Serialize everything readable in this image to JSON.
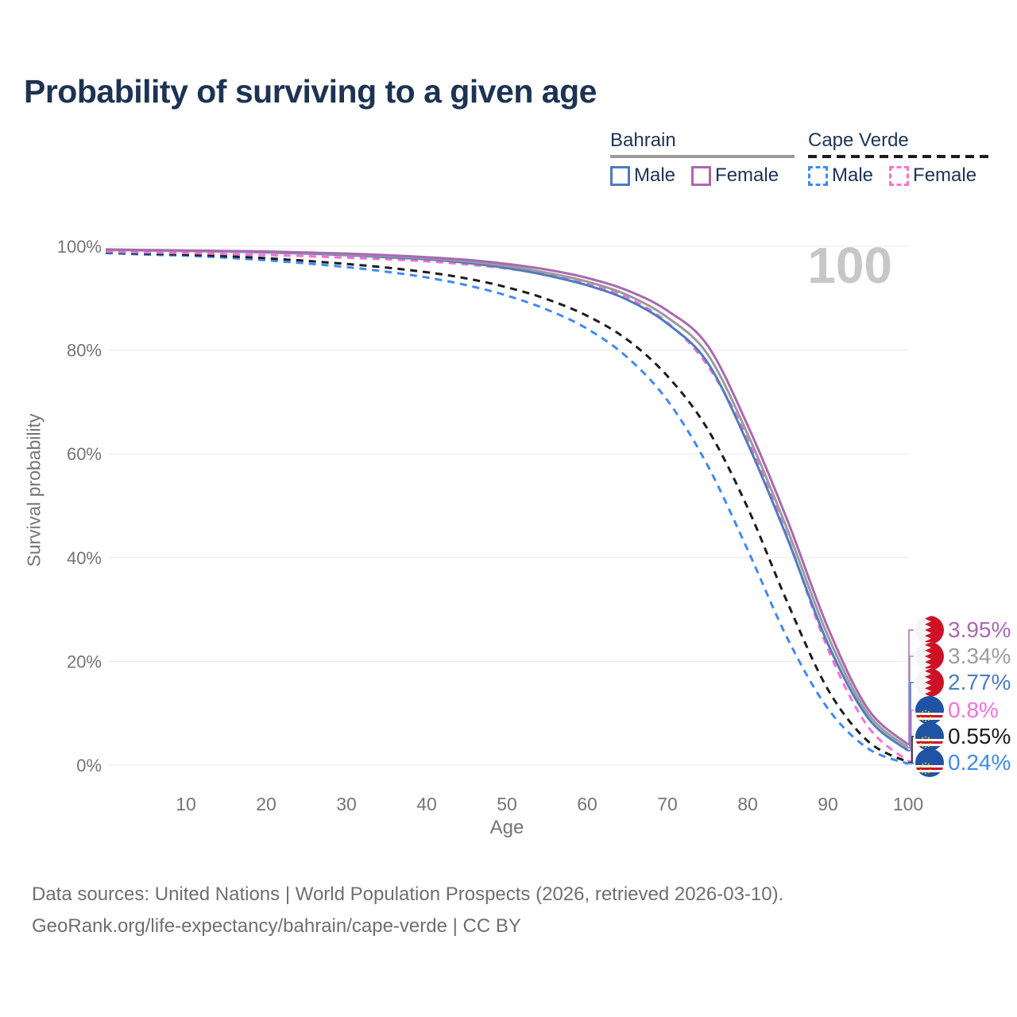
{
  "title": "Probability of surviving to a given age",
  "age_indicator": "100",
  "legend": {
    "groups": [
      {
        "title": "Bahrain",
        "line_style": "solid",
        "line_color": "#9b9b9b",
        "items": [
          {
            "label": "Male",
            "color": "#4d7cbd"
          },
          {
            "label": "Female",
            "color": "#a968b1"
          }
        ]
      },
      {
        "title": "Cape Verde",
        "line_style": "dashed",
        "line_color": "#1c1c1c",
        "items": [
          {
            "label": "Male",
            "color": "#3f8af2"
          },
          {
            "label": "Female",
            "color": "#fb6fd8"
          }
        ]
      }
    ]
  },
  "chart_data": {
    "type": "line",
    "title": "Probability of surviving to a given age",
    "xlabel": "Age",
    "ylabel": "Survival probability",
    "xlim": [
      0,
      100
    ],
    "ylim": [
      0,
      100
    ],
    "grid": true,
    "gridline_color": "#e8e8e8",
    "tick_color": "#757575",
    "xticks": [
      10,
      20,
      30,
      40,
      50,
      60,
      70,
      80,
      90,
      100
    ],
    "ytick_values": [
      0,
      20,
      40,
      60,
      80,
      100
    ],
    "ytick_labels": [
      "0%",
      "20%",
      "40%",
      "60%",
      "80%",
      "100%"
    ],
    "x": [
      0,
      5,
      10,
      15,
      20,
      25,
      30,
      35,
      40,
      45,
      50,
      55,
      60,
      65,
      70,
      75,
      80,
      85,
      90,
      95,
      100
    ],
    "series": [
      {
        "name": "Cape Verde Male",
        "country": "Cape Verde",
        "sex": "Male",
        "color": "#3f8af2",
        "dashed": true,
        "values": [
          98.7,
          98.4,
          98.2,
          97.8,
          97.3,
          96.7,
          96.0,
          95.1,
          94.0,
          92.5,
          90.5,
          87.8,
          84.1,
          78.6,
          70.3,
          57.8,
          41.5,
          24.3,
          10.9,
          3.2,
          0.24
        ]
      },
      {
        "name": "Cape Verde",
        "country": "Cape Verde",
        "sex": "Both",
        "color": "#1c1c1c",
        "dashed": true,
        "values": [
          98.9,
          98.6,
          98.4,
          98.1,
          97.7,
          97.2,
          96.6,
          95.9,
          95.0,
          93.8,
          92.1,
          89.8,
          86.6,
          82.0,
          75.0,
          64.8,
          49.6,
          31.2,
          14.6,
          4.6,
          0.55
        ]
      },
      {
        "name": "Cape Verde Female",
        "country": "Cape Verde",
        "sex": "Female",
        "color": "#fb6fd8",
        "dashed": true,
        "values": [
          99.0,
          98.8,
          98.7,
          98.5,
          98.3,
          98.1,
          97.8,
          97.5,
          97.1,
          96.5,
          95.7,
          94.5,
          92.8,
          90.1,
          85.3,
          77.0,
          63.0,
          43.8,
          22.4,
          7.4,
          0.8
        ]
      },
      {
        "name": "Bahrain Male",
        "country": "Bahrain",
        "sex": "Male",
        "color": "#4d7cbd",
        "dashed": false,
        "values": [
          99.3,
          99.2,
          99.1,
          99.0,
          98.8,
          98.6,
          98.3,
          97.9,
          97.5,
          96.8,
          95.8,
          94.4,
          92.5,
          89.7,
          85.1,
          77.6,
          62.0,
          43.5,
          23.4,
          9.1,
          2.77
        ]
      },
      {
        "name": "Bahrain",
        "country": "Bahrain",
        "sex": "Both",
        "color": "#9b9b9b",
        "dashed": false,
        "values": [
          99.3,
          99.2,
          99.1,
          99.0,
          98.9,
          98.7,
          98.4,
          98.1,
          97.7,
          97.1,
          96.2,
          94.9,
          93.2,
          90.6,
          86.3,
          79.2,
          63.8,
          45.2,
          24.9,
          9.9,
          3.34
        ]
      },
      {
        "name": "Bahrain Female",
        "country": "Bahrain",
        "sex": "Female",
        "color": "#a968b1",
        "dashed": false,
        "values": [
          99.4,
          99.3,
          99.2,
          99.1,
          99.0,
          98.8,
          98.6,
          98.3,
          97.9,
          97.4,
          96.6,
          95.5,
          93.9,
          91.5,
          87.6,
          80.9,
          65.5,
          47.0,
          26.5,
          10.8,
          3.95
        ]
      }
    ],
    "end_labels": [
      {
        "text": "3.95%",
        "color": "#a968b1",
        "flag": "bahrain",
        "series": "Bahrain Female"
      },
      {
        "text": "3.34%",
        "color": "#9e9e9e",
        "flag": "bahrain",
        "series": "Bahrain"
      },
      {
        "text": "2.77%",
        "color": "#4d7cbd",
        "flag": "bahrain",
        "series": "Bahrain Male"
      },
      {
        "text": "0.8%",
        "color": "#fb6fd8",
        "flag": "cape-verde",
        "series": "Cape Verde Female"
      },
      {
        "text": "0.55%",
        "color": "#1c1c1c",
        "flag": "cape-verde",
        "series": "Cape Verde"
      },
      {
        "text": "0.24%",
        "color": "#3f8af2",
        "flag": "cape-verde",
        "series": "Cape Verde Male"
      }
    ],
    "legend_position": "top-right"
  },
  "footer": {
    "line1": "Data sources: United Nations | World Population Prospects (2026, retrieved 2026-03-10).",
    "line2": "GeoRank.org/life-expectancy/bahrain/cape-verde | CC BY"
  }
}
